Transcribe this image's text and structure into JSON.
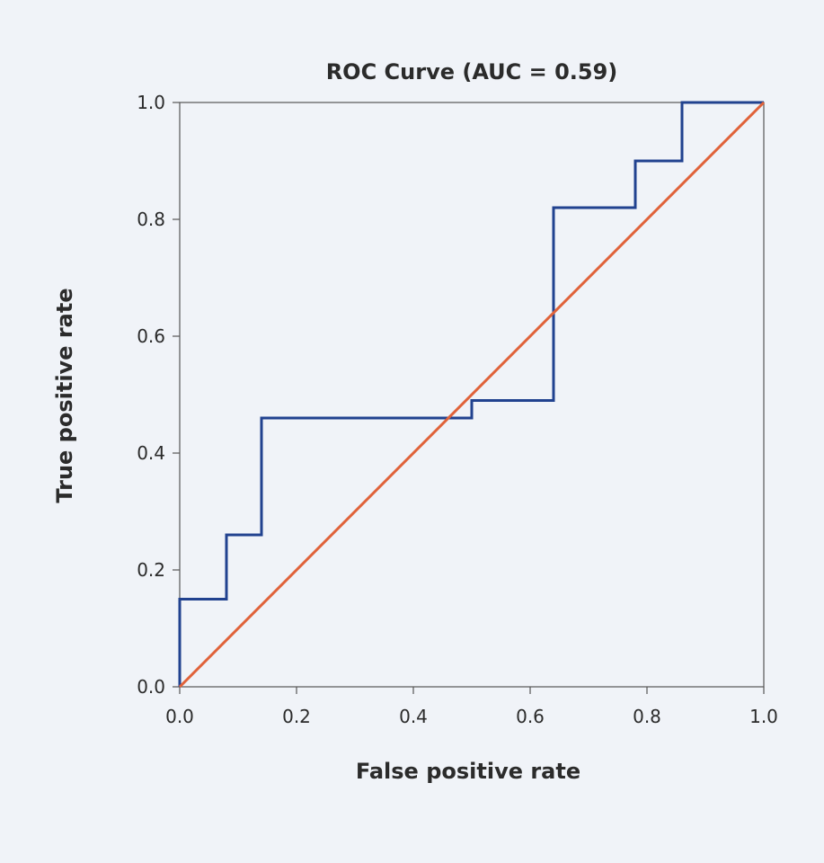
{
  "chart_data": {
    "type": "line",
    "title": "ROC Curve (AUC = 0.59)",
    "xlabel": "False positive rate",
    "ylabel": "True positive rate",
    "xlim": [
      0,
      1
    ],
    "ylim": [
      0,
      1
    ],
    "x_ticks": [
      "0.0",
      "0.2",
      "0.4",
      "0.6",
      "0.8",
      "1.0"
    ],
    "y_ticks": [
      "0.0",
      "0.2",
      "0.4",
      "0.6",
      "0.8",
      "1.0"
    ],
    "grid": false,
    "series": [
      {
        "step": true,
        "color": "#21428f",
        "x": [
          0.0,
          0.0,
          0.08,
          0.08,
          0.14,
          0.14,
          0.5,
          0.5,
          0.64,
          0.64,
          0.78,
          0.78,
          0.86,
          0.86,
          1.0
        ],
        "y": [
          0.0,
          0.15,
          0.15,
          0.26,
          0.26,
          0.46,
          0.46,
          0.49,
          0.49,
          0.82,
          0.82,
          0.9,
          0.9,
          1.0,
          1.0
        ]
      },
      {
        "color": "#e0623a",
        "x": [
          0.0,
          1.0
        ],
        "y": [
          0.0,
          1.0
        ]
      }
    ]
  }
}
